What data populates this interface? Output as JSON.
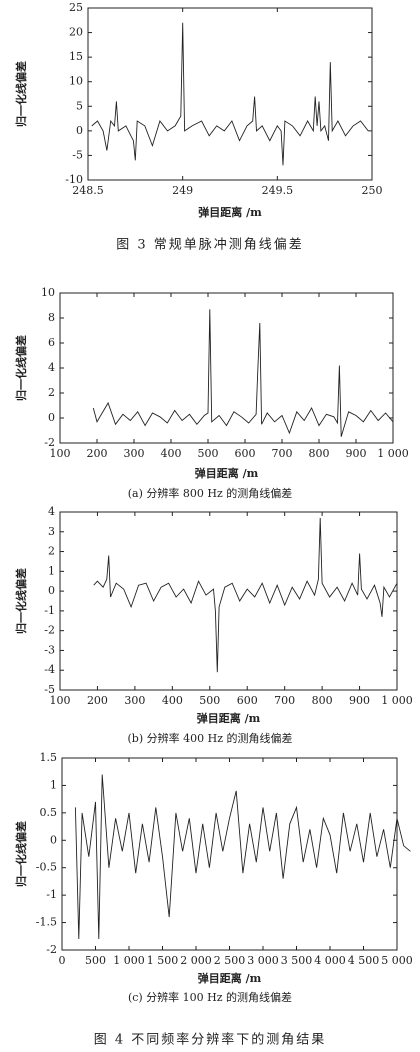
{
  "chart_data": [
    {
      "type": "line",
      "xlabel": "弹目距离 /m",
      "ylabel": "归一化线偏差",
      "caption": "图 3  常规单脉冲测角线偏差",
      "xlim": [
        248.5,
        250
      ],
      "xticks": [
        248.5,
        249,
        249.5,
        250
      ],
      "ylim": [
        -10,
        25
      ],
      "yticks": [
        -10,
        -5,
        0,
        5,
        10,
        15,
        20,
        25
      ],
      "color": "#222222",
      "x": [
        248.52,
        248.55,
        248.58,
        248.6,
        248.62,
        248.64,
        248.65,
        248.66,
        248.7,
        248.74,
        248.75,
        248.76,
        248.8,
        248.84,
        248.88,
        248.92,
        248.96,
        248.99,
        249.0,
        249.01,
        249.05,
        249.1,
        249.14,
        249.18,
        249.22,
        249.26,
        249.3,
        249.34,
        249.37,
        249.38,
        249.39,
        249.42,
        249.46,
        249.5,
        249.52,
        249.53,
        249.54,
        249.58,
        249.62,
        249.66,
        249.69,
        249.7,
        249.71,
        249.72,
        249.73,
        249.75,
        249.77,
        249.78,
        249.79,
        249.82,
        249.86,
        249.9,
        249.94,
        249.98
      ],
      "values": [
        1,
        2,
        0,
        -4,
        2,
        1,
        6,
        0,
        1,
        -2,
        -6,
        2,
        1,
        -3,
        2,
        0,
        1,
        3,
        22,
        0,
        1,
        2,
        -1,
        1,
        0,
        2,
        -2,
        1,
        2,
        7,
        0,
        1,
        -2,
        1,
        0,
        -7,
        2,
        1,
        -1,
        2,
        0,
        7,
        1,
        6,
        0,
        1,
        -2,
        14,
        0,
        2,
        -1,
        1,
        2,
        0
      ]
    },
    {
      "type": "line",
      "xlabel": "弹目距离 /m",
      "ylabel": "归一化线偏差",
      "caption": "(a) 分辨率 800 Hz 的测角线偏差",
      "xlim": [
        100,
        1000
      ],
      "xticks": [
        100,
        200,
        300,
        400,
        500,
        600,
        700,
        800,
        900,
        {
          "value": 1000,
          "label": "1 000"
        }
      ],
      "ylim": [
        -2,
        10
      ],
      "yticks": [
        -2,
        0,
        2,
        4,
        6,
        8,
        10
      ],
      "color": "#222222",
      "x": [
        190,
        200,
        210,
        230,
        250,
        270,
        290,
        310,
        330,
        350,
        370,
        390,
        410,
        430,
        450,
        470,
        490,
        500,
        505,
        510,
        530,
        550,
        570,
        590,
        610,
        630,
        635,
        640,
        645,
        660,
        680,
        700,
        720,
        740,
        760,
        780,
        800,
        820,
        840,
        850,
        855,
        860,
        880,
        900,
        920,
        940,
        960,
        980,
        1000
      ],
      "values": [
        0.8,
        -0.3,
        0.2,
        1.2,
        -0.5,
        0.3,
        -0.2,
        0.5,
        -0.6,
        0.4,
        0.1,
        -0.4,
        0.6,
        -0.2,
        0.3,
        -0.5,
        0.2,
        0.4,
        8.7,
        -0.3,
        0.2,
        -0.6,
        0.5,
        0.1,
        -0.4,
        0.3,
        4,
        7.6,
        -0.5,
        0.4,
        -0.3,
        0.2,
        -1.2,
        0.5,
        -0.2,
        0.8,
        -0.6,
        0.3,
        0.1,
        -0.4,
        4.2,
        -1.5,
        0.5,
        0.2,
        -0.3,
        0.6,
        -0.2,
        0.4,
        -0.3
      ]
    },
    {
      "type": "line",
      "xlabel": "弹目距离 /m",
      "ylabel": "归一化线偏差",
      "caption": "(b) 分辨率 400 Hz 的测角线偏差",
      "xlim": [
        100,
        1000
      ],
      "xticks": [
        100,
        200,
        300,
        400,
        500,
        600,
        700,
        800,
        900,
        {
          "value": 1000,
          "label": "1 000"
        }
      ],
      "ylim": [
        -5,
        4
      ],
      "yticks": [
        -5,
        -4,
        -3,
        -2,
        -1,
        0,
        1,
        2,
        3,
        4
      ],
      "color": "#222222",
      "x": [
        190,
        200,
        215,
        225,
        230,
        235,
        250,
        270,
        290,
        310,
        330,
        350,
        370,
        390,
        410,
        430,
        450,
        470,
        490,
        510,
        515,
        520,
        525,
        540,
        560,
        580,
        600,
        620,
        640,
        660,
        680,
        700,
        720,
        740,
        760,
        780,
        790,
        795,
        800,
        820,
        840,
        860,
        880,
        895,
        900,
        905,
        920,
        940,
        955,
        960,
        965,
        980,
        1000
      ],
      "values": [
        0.3,
        0.5,
        0.2,
        0.6,
        1.8,
        -0.3,
        0.4,
        0.1,
        -0.8,
        0.3,
        0.4,
        -0.5,
        0.2,
        0.4,
        -0.3,
        0.1,
        -0.6,
        0.5,
        -0.2,
        0.1,
        -1,
        -4.1,
        -0.8,
        0.2,
        0.4,
        -0.5,
        0.1,
        -0.3,
        0.4,
        -0.6,
        0.3,
        -0.7,
        0.2,
        -0.4,
        0.5,
        -0.2,
        0.6,
        3.7,
        0.4,
        -0.3,
        0.2,
        -0.5,
        0.4,
        -0.2,
        1.9,
        0.1,
        -0.4,
        0.3,
        -0.6,
        -1.3,
        0.2,
        -0.3,
        0.4
      ]
    },
    {
      "type": "line",
      "xlabel": "弹目距离 /m",
      "ylabel": "归一化线偏差",
      "caption": "(c) 分辨率 100 Hz 的测角线偏差",
      "xlim": [
        0,
        5000
      ],
      "xticks": [
        0,
        500,
        {
          "value": 1000,
          "label": "1 000"
        },
        {
          "value": 1500,
          "label": "1 500"
        },
        {
          "value": 2000,
          "label": "2 000"
        },
        {
          "value": 2500,
          "label": "2 500"
        },
        {
          "value": 3000,
          "label": "3 000"
        },
        {
          "value": 3500,
          "label": "3 500"
        },
        {
          "value": 4000,
          "label": "4 000"
        },
        {
          "value": 4500,
          "label": "4 500"
        },
        {
          "value": 5000,
          "label": "5 000"
        }
      ],
      "ylim": [
        -2,
        1.5
      ],
      "yticks": [
        -2,
        -1.5,
        -1,
        -0.5,
        0,
        0.5,
        1,
        1.5
      ],
      "color": "#222222",
      "x": [
        200,
        250,
        300,
        400,
        500,
        550,
        600,
        700,
        800,
        900,
        1000,
        1100,
        1200,
        1300,
        1400,
        1500,
        1600,
        1700,
        1800,
        1900,
        2000,
        2100,
        2200,
        2300,
        2400,
        2500,
        2600,
        2700,
        2800,
        2900,
        3000,
        3100,
        3200,
        3300,
        3400,
        3500,
        3600,
        3700,
        3800,
        3900,
        4000,
        4100,
        4200,
        4300,
        4400,
        4500,
        4600,
        4700,
        4800,
        4900,
        5000,
        5100,
        5200
      ],
      "values": [
        0.6,
        -1.8,
        0.5,
        -0.3,
        0.7,
        -1.8,
        1.2,
        -0.5,
        0.4,
        -0.2,
        0.5,
        -0.6,
        0.3,
        -0.4,
        0.6,
        -0.3,
        -1.4,
        0.5,
        -0.2,
        0.4,
        -0.6,
        0.3,
        -0.5,
        0.5,
        -0.2,
        0.4,
        0.9,
        -0.6,
        0.3,
        -0.4,
        0.6,
        -0.2,
        0.5,
        -0.7,
        0.3,
        0.6,
        -0.4,
        0.2,
        -0.5,
        0.4,
        0.1,
        -0.6,
        0.5,
        -0.2,
        0.3,
        -0.4,
        0.5,
        -0.3,
        0.2,
        -0.5,
        0.4,
        -0.1,
        -0.2
      ]
    }
  ],
  "figure_caption": "图 4  不同频率分辨率下的测角结果"
}
